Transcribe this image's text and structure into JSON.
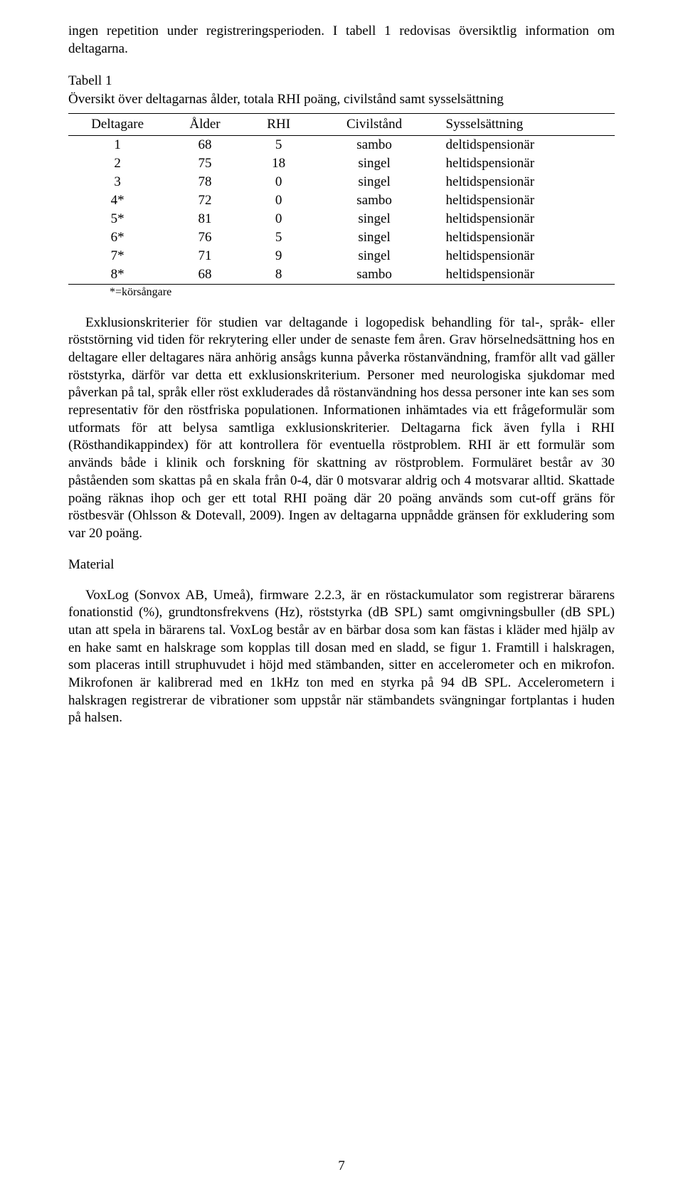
{
  "intro_para": "ingen repetition under registreringsperioden. I tabell 1 redovisas översiktlig information om deltagarna.",
  "table_caption_line1": "Tabell 1",
  "table_caption_line2": "Översikt över deltagarnas ålder, totala RHI poäng, civilstånd samt sysselsättning",
  "table": {
    "columns": [
      "Deltagare",
      "Ålder",
      "RHI",
      "Civilstånd",
      "Sysselsättning"
    ],
    "rows": [
      [
        "1",
        "68",
        "5",
        "sambo",
        "deltidspensionär"
      ],
      [
        "2",
        "75",
        "18",
        "singel",
        "heltidspensionär"
      ],
      [
        "3",
        "78",
        "0",
        "singel",
        "heltidspensionär"
      ],
      [
        "4*",
        "72",
        "0",
        "sambo",
        "heltidspensionär"
      ],
      [
        "5*",
        "81",
        "0",
        "singel",
        "heltidspensionär"
      ],
      [
        "6*",
        "76",
        "5",
        "singel",
        "heltidspensionär"
      ],
      [
        "7*",
        "71",
        "9",
        "singel",
        "heltidspensionär"
      ],
      [
        "8*",
        "68",
        "8",
        "sambo",
        "heltidspensionär"
      ]
    ],
    "col_widths": [
      "18%",
      "14%",
      "13%",
      "22%",
      "33%"
    ]
  },
  "footnote": "*=körsångare",
  "body_para": "Exklusionskriterier för studien var deltagande i logopedisk behandling för tal-, språk- eller röststörning vid tiden för rekrytering eller under de senaste fem åren. Grav hörselnedsättning hos en deltagare eller deltagares nära anhörig ansågs kunna påverka röstanvändning, framför allt vad gäller röststyrka, därför var detta ett exklusionskriterium. Personer med neurologiska sjukdomar med påverkan på tal, språk eller röst exkluderades då röstanvändning hos dessa personer inte kan ses som representativ för den röstfriska populationen. Informationen inhämtades via ett frågeformulär som utformats för att belysa samtliga exklusionskriterier. Deltagarna fick även fylla i RHI (Rösthandikappindex) för att kontrollera för eventuella röstproblem. RHI är ett formulär som används både i klinik och forskning för skattning av röstproblem. Formuläret består av 30 påståenden som skattas på en skala från 0-4, där 0 motsvarar aldrig och 4 motsvarar alltid. Skattade poäng räknas ihop och ger ett total RHI poäng där 20 poäng används som cut-off gräns för röstbesvär (Ohlsson & Dotevall, 2009). Ingen av deltagarna uppnådde gränsen för exkludering som var 20 poäng.",
  "section_heading": "Material",
  "material_para": "VoxLog (Sonvox AB, Umeå), firmware 2.2.3, är en röstackumulator som registrerar bärarens fonationstid (%), grundtonsfrekvens (Hz), röststyrka (dB SPL) samt omgivningsbuller (dB SPL) utan att spela in bärarens tal. VoxLog består av en bärbar dosa som kan fästas i kläder med hjälp av en hake samt en halskrage som kopplas till dosan med en sladd, se figur 1. Framtill i halskragen, som placeras intill struphuvudet i höjd med stämbanden, sitter en accelerometer och en mikrofon. Mikrofonen är kalibrerad med en 1kHz ton med en styrka på 94 dB SPL. Accelerometern i halskragen registrerar de vibrationer som uppstår när stämbandets svängningar fortplantas i huden på halsen.",
  "page_number": "7"
}
